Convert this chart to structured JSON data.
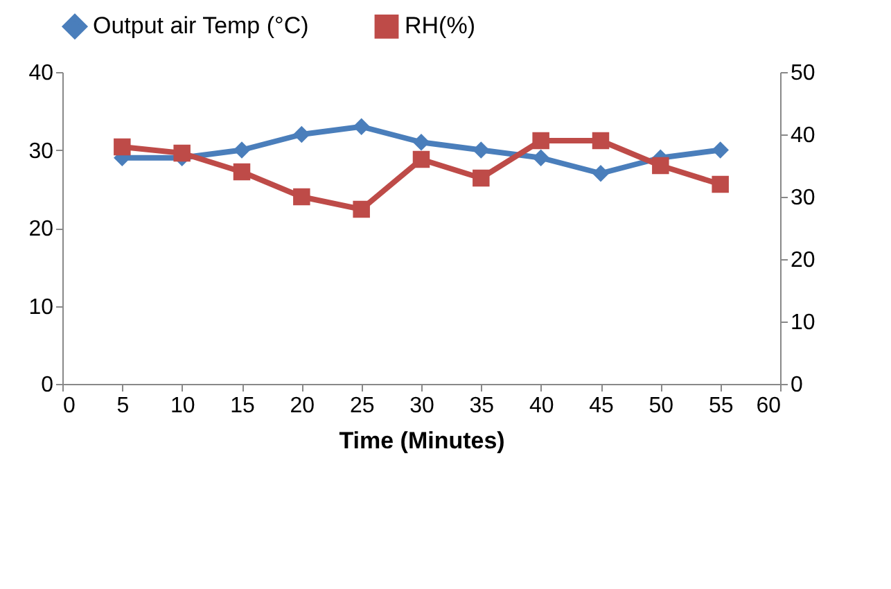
{
  "chart_data": {
    "type": "line",
    "xlabel": "Time (Minutes)",
    "x": [
      5,
      10,
      15,
      20,
      25,
      30,
      35,
      40,
      45,
      50,
      55
    ],
    "xlim": [
      0,
      60
    ],
    "xticks": [
      0,
      5,
      10,
      15,
      20,
      25,
      30,
      35,
      40,
      45,
      50,
      55,
      60
    ],
    "ylim": [
      0,
      40
    ],
    "yticks": [
      0,
      10,
      20,
      30,
      40
    ],
    "y2lim": [
      0,
      50
    ],
    "y2ticks": [
      0,
      10,
      20,
      30,
      40,
      50
    ],
    "legend": "top",
    "grid": false,
    "series": [
      {
        "name": "Output air Temp (°C)",
        "color": "#4a7ebb",
        "marker": "diamond",
        "values": [
          29,
          29,
          30,
          32,
          33,
          31,
          30,
          29,
          27,
          29,
          30
        ]
      },
      {
        "name": "RH(%)",
        "color": "#be4b48",
        "marker": "square",
        "axis": "y2",
        "values": [
          38,
          37,
          34,
          30,
          28,
          36,
          33,
          39,
          39,
          35,
          32
        ]
      }
    ]
  }
}
